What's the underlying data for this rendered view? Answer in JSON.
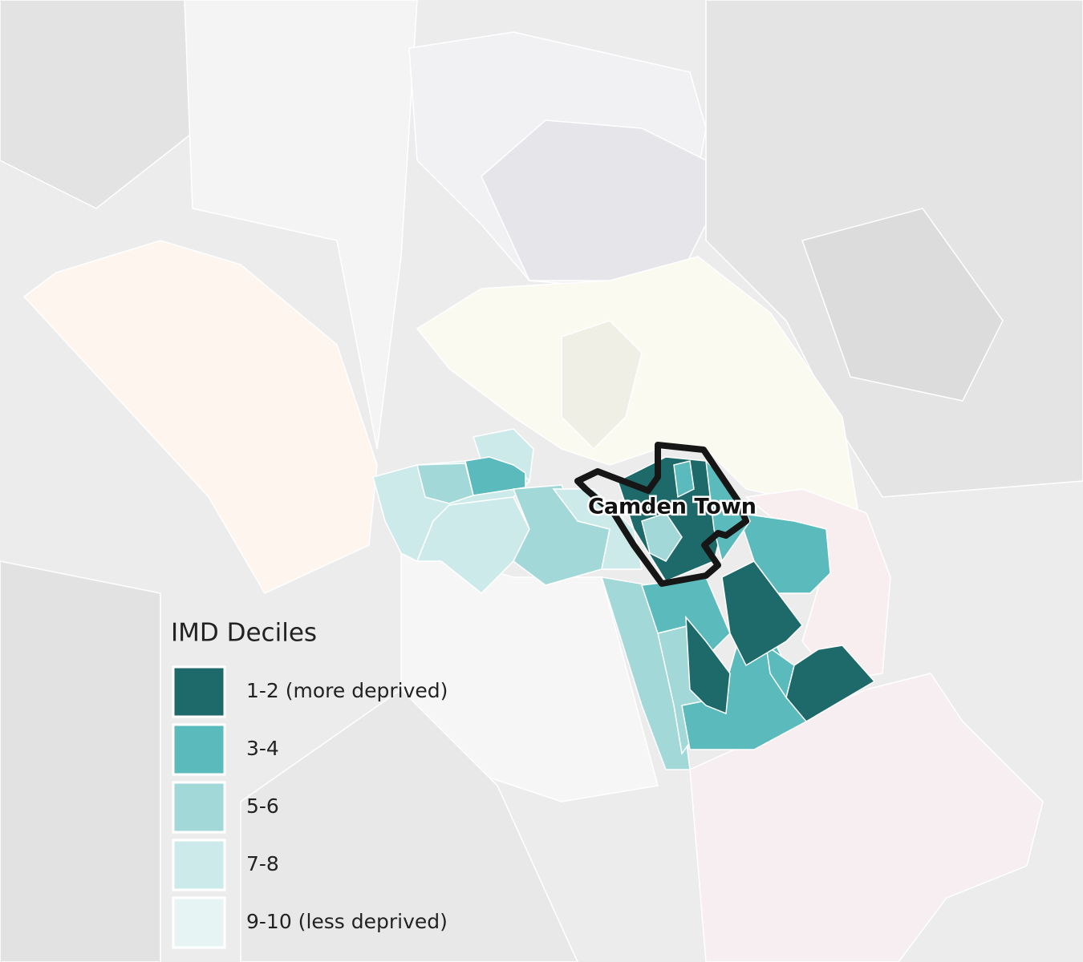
{
  "map": {
    "place_label": "Camden Town",
    "legend": {
      "title": "IMD Deciles",
      "items": [
        {
          "label": "1-2 (more deprived)",
          "color": "#1e6a6a"
        },
        {
          "label": "3-4",
          "color": "#5bbbbc"
        },
        {
          "label": "5-6",
          "color": "#a3d8d8"
        },
        {
          "label": "7-8",
          "color": "#cdeaea"
        },
        {
          "label": "9-10 (less deprived)",
          "color": "#e6f4f4"
        }
      ]
    }
  }
}
